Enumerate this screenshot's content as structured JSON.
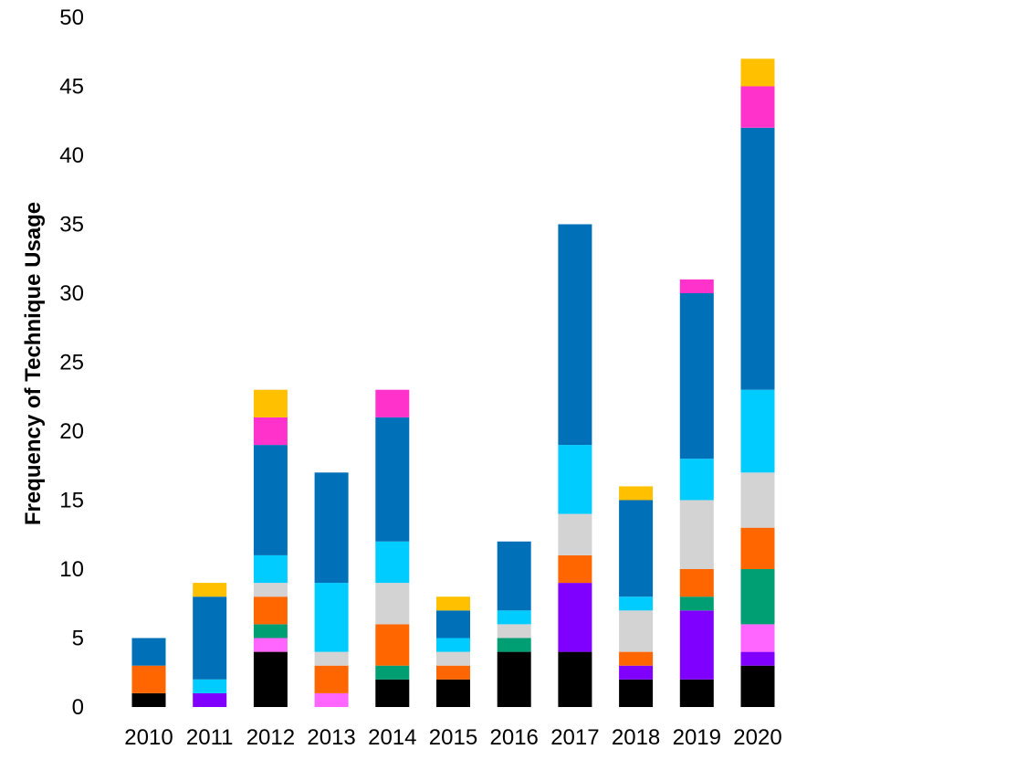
{
  "chart_data": {
    "type": "bar",
    "stacked": true,
    "title": "",
    "xlabel": "",
    "ylabel": "Frequency of Technique Usage",
    "ylim": [
      0,
      50
    ],
    "yticks": [
      0,
      5,
      10,
      15,
      20,
      25,
      30,
      35,
      40,
      45,
      50
    ],
    "grid": false,
    "legend": "none",
    "categories": [
      "2010",
      "2011",
      "2012",
      "2013",
      "2014",
      "2015",
      "2016",
      "2017",
      "2018",
      "2019",
      "2020"
    ],
    "series": [
      {
        "color": "#000000",
        "values": [
          1,
          0,
          4,
          0,
          2,
          2,
          4,
          4,
          2,
          2,
          3
        ]
      },
      {
        "color": "#7f00ff",
        "values": [
          0,
          1,
          0,
          0,
          0,
          0,
          0,
          5,
          1,
          5,
          1
        ]
      },
      {
        "color": "#ff66ff",
        "values": [
          0,
          0,
          1,
          1,
          0,
          0,
          0,
          0,
          0,
          0,
          2
        ]
      },
      {
        "color": "#009e73",
        "values": [
          0,
          0,
          1,
          0,
          1,
          0,
          1,
          0,
          0,
          1,
          4
        ]
      },
      {
        "color": "#ff6600",
        "values": [
          2,
          0,
          2,
          2,
          3,
          1,
          0,
          2,
          1,
          2,
          3
        ]
      },
      {
        "color": "#d3d3d3",
        "values": [
          0,
          0,
          1,
          1,
          3,
          1,
          1,
          3,
          3,
          5,
          4
        ]
      },
      {
        "color": "#00ccff",
        "values": [
          0,
          1,
          2,
          5,
          3,
          1,
          1,
          5,
          1,
          3,
          6
        ]
      },
      {
        "color": "#0070b8",
        "values": [
          2,
          6,
          8,
          8,
          9,
          2,
          5,
          16,
          7,
          12,
          19
        ]
      },
      {
        "color": "#ff33cc",
        "values": [
          0,
          0,
          2,
          0,
          2,
          0,
          0,
          0,
          0,
          1,
          3
        ]
      },
      {
        "color": "#ffc000",
        "values": [
          0,
          1,
          2,
          0,
          0,
          1,
          0,
          0,
          1,
          0,
          2
        ]
      }
    ]
  }
}
